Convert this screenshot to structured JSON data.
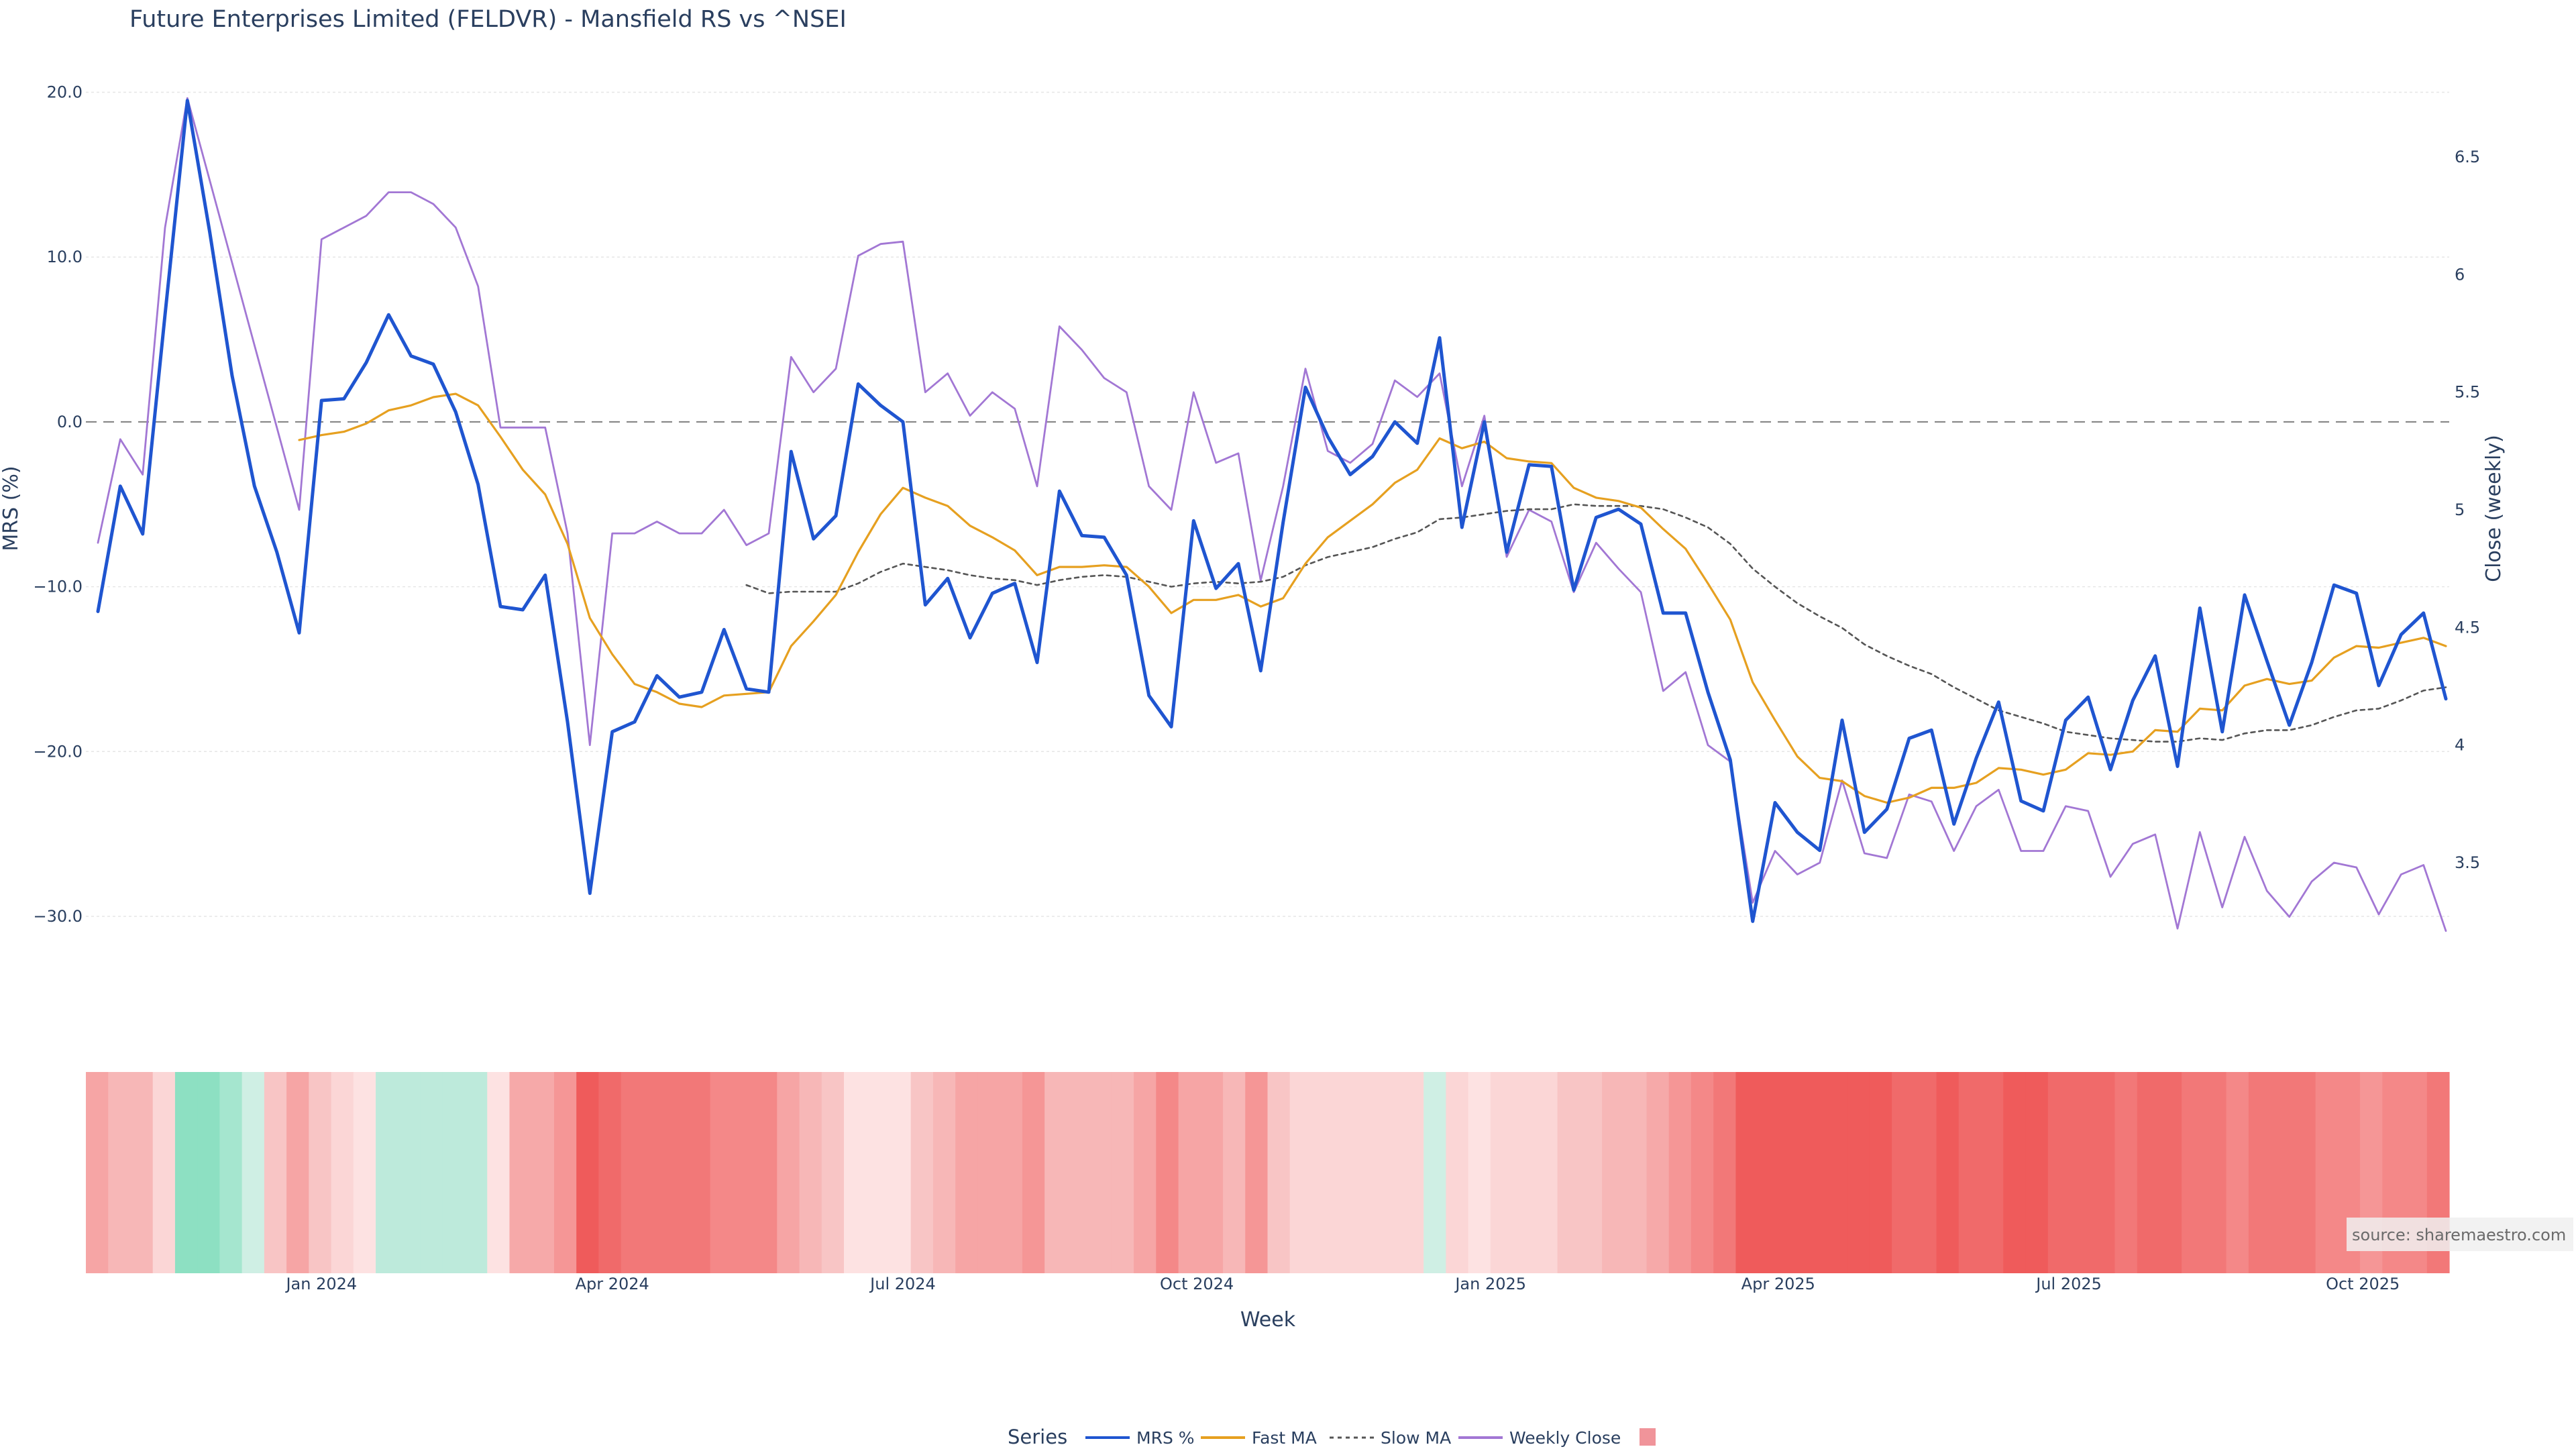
{
  "chart_data": {
    "type": "line",
    "title": "Future Enterprises Limited (FELDVR) - Mansfield RS vs ^NSEI",
    "xlabel": "Week",
    "ylabel": "MRS (%)",
    "y2label": "Close (weekly)",
    "ylim": [
      -35,
      20
    ],
    "y2lim": [
      3.2,
      6.75
    ],
    "y_ticks": [
      20,
      10,
      0,
      -10,
      -20,
      -30
    ],
    "y_tick_labels": [
      "20.0",
      "10.0",
      "0.0",
      "−10.0",
      "−20.0",
      "−30.0"
    ],
    "y2_ticks": [
      3.5,
      4,
      4.5,
      5,
      5.5,
      6,
      6.5
    ],
    "y2_tick_labels": [
      "3.5",
      "4",
      "4.5",
      "5",
      "5.5",
      "6",
      "6.5"
    ],
    "x_start": "2023-10-23",
    "x_step_days": 7,
    "x_tick_dates": [
      "2024-01-01",
      "2024-04-01",
      "2024-07-01",
      "2024-10-01",
      "2025-01-01",
      "2025-04-01",
      "2025-07-01",
      "2025-10-01"
    ],
    "x_tick_labels": [
      "Jan 2024",
      "Apr 2024",
      "Jul 2024",
      "Oct 2024",
      "Jan 2025",
      "Apr 2025",
      "Jul 2025",
      "Oct 2025"
    ],
    "zero_line": 0,
    "grid": true,
    "series": [
      {
        "name": "MRS %",
        "color": "#1f55d0",
        "dash": "solid",
        "axis": "y",
        "values": [
          -11.5,
          -3.9,
          -6.8,
          6.5,
          19.5,
          11.5,
          2.8,
          -3.9,
          -7.9,
          -12.8,
          1.3,
          1.4,
          3.6,
          6.5,
          4.0,
          3.5,
          0.6,
          -3.8,
          -11.2,
          -11.4,
          -9.3,
          -18.2,
          -28.6,
          -18.8,
          -18.2,
          -15.4,
          -16.7,
          -16.4,
          -12.6,
          -16.2,
          -16.4,
          -1.8,
          -7.1,
          -5.7,
          2.3,
          1.0,
          0.0,
          -11.1,
          -9.5,
          -13.1,
          -10.4,
          -9.8,
          -14.6,
          -4.2,
          -6.9,
          -7.0,
          -9.3,
          -16.6,
          -18.5,
          -6.0,
          -10.1,
          -8.6,
          -15.1,
          -6.1,
          2.1,
          -0.9,
          -3.2,
          -2.1,
          0.0,
          -1.3,
          5.1,
          -6.4,
          0.0,
          -7.9,
          -2.6,
          -2.7,
          -10.2,
          -5.8,
          -5.3,
          -6.2,
          -11.6,
          -11.6,
          -16.4,
          -20.5,
          -30.3,
          -23.1,
          -24.9,
          -26.0,
          -18.1,
          -24.9,
          -23.5,
          -19.2,
          -18.7,
          -24.4,
          -20.4,
          -17.0,
          -23.0,
          -23.6,
          -18.1,
          -16.7,
          -21.1,
          -16.9,
          -14.2,
          -20.9,
          -11.3,
          -18.8,
          -10.5,
          -14.5,
          -18.4,
          -14.6,
          -9.9,
          -10.4,
          -16.0,
          -12.9,
          -11.6,
          -16.8
        ]
      },
      {
        "name": "Fast MA",
        "color": "#e6a020",
        "dash": "solid",
        "axis": "y",
        "values": [
          null,
          null,
          null,
          null,
          null,
          null,
          null,
          null,
          null,
          -1.1,
          -0.8,
          -0.6,
          -0.1,
          0.7,
          1.0,
          1.5,
          1.7,
          1.0,
          -0.9,
          -2.9,
          -4.4,
          -7.4,
          -11.9,
          -14.1,
          -15.9,
          -16.4,
          -17.1,
          -17.3,
          -16.6,
          -16.5,
          -16.4,
          -13.6,
          -12.1,
          -10.5,
          -7.9,
          -5.6,
          -4.0,
          -4.6,
          -5.1,
          -6.3,
          -7.0,
          -7.8,
          -9.3,
          -8.8,
          -8.8,
          -8.7,
          -8.8,
          -10.0,
          -11.6,
          -10.8,
          -10.8,
          -10.5,
          -11.2,
          -10.7,
          -8.6,
          -7.0,
          -6.0,
          -5.0,
          -3.7,
          -2.9,
          -1.0,
          -1.6,
          -1.2,
          -2.2,
          -2.4,
          -2.5,
          -4.0,
          -4.6,
          -4.8,
          -5.2,
          -6.5,
          -7.7,
          -9.8,
          -12.0,
          -15.8,
          -18.1,
          -20.3,
          -21.6,
          -21.8,
          -22.7,
          -23.1,
          -22.8,
          -22.2,
          -22.2,
          -21.9,
          -21.0,
          -21.1,
          -21.4,
          -21.1,
          -20.1,
          -20.2,
          -20.0,
          -18.7,
          -18.8,
          -17.4,
          -17.5,
          -16.0,
          -15.6,
          -15.9,
          -15.7,
          -14.3,
          -13.6,
          -13.7,
          -13.4,
          -13.1,
          -13.6
        ]
      },
      {
        "name": "Slow MA",
        "color": "#555555",
        "dash": "dotted",
        "axis": "y",
        "values": [
          null,
          null,
          null,
          null,
          null,
          null,
          null,
          null,
          null,
          null,
          null,
          null,
          null,
          null,
          null,
          null,
          null,
          null,
          null,
          null,
          null,
          null,
          null,
          null,
          null,
          null,
          null,
          null,
          null,
          -9.9,
          -10.4,
          -10.3,
          -10.3,
          -10.3,
          -9.8,
          -9.1,
          -8.6,
          -8.8,
          -9.0,
          -9.3,
          -9.5,
          -9.6,
          -9.9,
          -9.6,
          -9.4,
          -9.3,
          -9.4,
          -9.7,
          -10.0,
          -9.8,
          -9.7,
          -9.8,
          -9.7,
          -9.4,
          -8.7,
          -8.2,
          -7.9,
          -7.6,
          -7.1,
          -6.7,
          -5.9,
          -5.8,
          -5.6,
          -5.4,
          -5.3,
          -5.3,
          -5.0,
          -5.1,
          -5.1,
          -5.1,
          -5.3,
          -5.8,
          -6.4,
          -7.4,
          -8.9,
          -10.0,
          -11.0,
          -11.8,
          -12.5,
          -13.5,
          -14.2,
          -14.8,
          -15.3,
          -16.1,
          -16.8,
          -17.5,
          -17.9,
          -18.3,
          -18.8,
          -19.0,
          -19.2,
          -19.3,
          -19.4,
          -19.4,
          -19.2,
          -19.3,
          -18.9,
          -18.7,
          -18.7,
          -18.4,
          -17.9,
          -17.5,
          -17.4,
          -16.9,
          -16.3,
          -16.1
        ]
      },
      {
        "name": "Weekly Close",
        "color": "#a277d4",
        "dash": "solid",
        "axis": "y2",
        "values": [
          4.86,
          5.3,
          5.15,
          6.2,
          6.75,
          6.4,
          6.05,
          5.7,
          5.35,
          5.0,
          6.15,
          6.2,
          6.25,
          6.35,
          6.35,
          6.3,
          6.2,
          5.95,
          5.35,
          5.35,
          5.35,
          4.9,
          4.0,
          4.9,
          4.9,
          4.95,
          4.9,
          4.9,
          5.0,
          4.85,
          4.9,
          5.65,
          5.5,
          5.6,
          6.08,
          6.13,
          6.14,
          5.5,
          5.58,
          5.4,
          5.5,
          5.43,
          5.1,
          5.78,
          5.68,
          5.56,
          5.5,
          5.1,
          5.0,
          5.5,
          5.2,
          5.24,
          4.7,
          5.1,
          5.6,
          5.25,
          5.2,
          5.28,
          5.55,
          5.48,
          5.58,
          5.1,
          5.4,
          4.8,
          5.0,
          4.95,
          4.65,
          4.86,
          4.75,
          4.65,
          4.23,
          4.31,
          4.0,
          3.93,
          3.33,
          3.55,
          3.45,
          3.5,
          3.85,
          3.54,
          3.52,
          3.79,
          3.76,
          3.55,
          3.74,
          3.81,
          3.55,
          3.55,
          3.74,
          3.72,
          3.44,
          3.58,
          3.62,
          3.22,
          3.63,
          3.31,
          3.61,
          3.38,
          3.27,
          3.42,
          3.5,
          3.48,
          3.28,
          3.45,
          3.49,
          3.21
        ]
      }
    ],
    "heatmap_strip": {
      "name": "",
      "colors": [
        "#f6a5a5",
        "#f7b7b7",
        "#f7b7b7",
        "#fbd6d6",
        "#8de0c2",
        "#8de0c2",
        "#a5e6cf",
        "#cfefe4",
        "#f8c5c5",
        "#f6a5a5",
        "#f8c5c5",
        "#fbd6d6",
        "#fde2e2",
        "#bdeadb",
        "#bdeadb",
        "#bdeadb",
        "#bdeadb",
        "#bdeadb",
        "#fde2e2",
        "#f6a9a9",
        "#f6a9a9",
        "#f59696",
        "#ef5b5b",
        "#f06a6a",
        "#f27878",
        "#f27878",
        "#f27878",
        "#f27878",
        "#f48888",
        "#f48888",
        "#f48888",
        "#f6a5a5",
        "#f7b7b7",
        "#f8c5c5",
        "#fde2e2",
        "#fde2e2",
        "#fde2e2",
        "#f8c5c5",
        "#f7b7b7",
        "#f6a5a5",
        "#f6a5a5",
        "#f6a5a5",
        "#f59696",
        "#f7b7b7",
        "#f7b7b7",
        "#f7b7b7",
        "#f7b7b7",
        "#f6a5a5",
        "#f48888",
        "#f6a5a5",
        "#f6a5a5",
        "#f7b7b7",
        "#f59696",
        "#f8c5c5",
        "#fbd6d6",
        "#fbd6d6",
        "#fbd6d6",
        "#fbd6d6",
        "#fbd6d6",
        "#fbd6d6",
        "#cfefe4",
        "#fbd6d6",
        "#fde2e2",
        "#fbd6d6",
        "#fbd6d6",
        "#fbd6d6",
        "#f8c5c5",
        "#f8c5c5",
        "#f7b7b7",
        "#f7b7b7",
        "#f6a9a9",
        "#f59696",
        "#f48888",
        "#f27878",
        "#ef5b5b",
        "#ef5b5b",
        "#ef5b5b",
        "#ef5b5b",
        "#ef5b5b",
        "#ef5b5b",
        "#ef5b5b",
        "#f06a6a",
        "#f06a6a",
        "#ef5b5b",
        "#f06a6a",
        "#f06a6a",
        "#ef5b5b",
        "#ef5b5b",
        "#f06a6a",
        "#f06a6a",
        "#f06a6a",
        "#f27878",
        "#f06a6a",
        "#f06a6a",
        "#f27878",
        "#f27878",
        "#f48888",
        "#f27878",
        "#f27878",
        "#f27878",
        "#f48888",
        "#f48888",
        "#f59696",
        "#f48888",
        "#f48888",
        "#f27878"
      ]
    }
  },
  "legend": {
    "title": "Series",
    "items": [
      {
        "label": "MRS %",
        "color": "#1f55d0",
        "style": "line"
      },
      {
        "label": "Fast MA",
        "color": "#e6a020",
        "style": "line"
      },
      {
        "label": "Slow MA",
        "color": "#555555",
        "style": "dotted"
      },
      {
        "label": "Weekly Close",
        "color": "#a277d4",
        "style": "line"
      },
      {
        "label": "",
        "color": "#f0949a",
        "style": "swatch"
      }
    ]
  },
  "source_text": "source: sharemaestro.com"
}
